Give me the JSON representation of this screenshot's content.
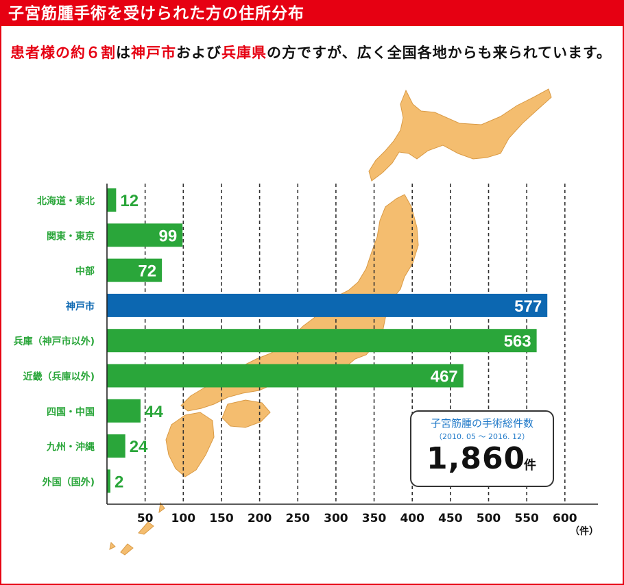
{
  "header": {
    "title": "子宮筋腫手術を受けられた方の住所分布"
  },
  "intro": {
    "parts": [
      {
        "text": "患者様の約６割",
        "red": true
      },
      {
        "text": "は",
        "red": false
      },
      {
        "text": "神戸市",
        "red": true
      },
      {
        "text": "および",
        "red": false
      },
      {
        "text": "兵庫県",
        "red": true
      },
      {
        "text": "の方ですが、広く全国各地からも来られています。",
        "red": false
      }
    ]
  },
  "total": {
    "label": "子宮筋腫の手術総件数",
    "period": "（2010. 05 ～ 2016. 12）",
    "value": "1,860",
    "unit": "件"
  },
  "colors": {
    "accent": "#e60012",
    "green": "#2aa63a",
    "blue": "#0c67b1",
    "map": "#f4bd6f"
  },
  "chart_data": {
    "type": "bar",
    "orientation": "horizontal",
    "categories": [
      "北海道・東北",
      "関東・東京",
      "中部",
      "神戸市",
      "兵庫（神戸市以外)",
      "近畿（兵庫以外)",
      "四国・中国",
      "九州・沖縄",
      "外国（国外)"
    ],
    "values": [
      12,
      99,
      72,
      577,
      563,
      467,
      44,
      24,
      2
    ],
    "highlight_category": "神戸市",
    "xticks": [
      "50",
      "100",
      "150",
      "200",
      "250",
      "300",
      "350",
      "400",
      "450",
      "500",
      "550",
      "600"
    ],
    "xlim": [
      0,
      600
    ],
    "unit_label": "（件）",
    "grid": "vertical dashed"
  }
}
